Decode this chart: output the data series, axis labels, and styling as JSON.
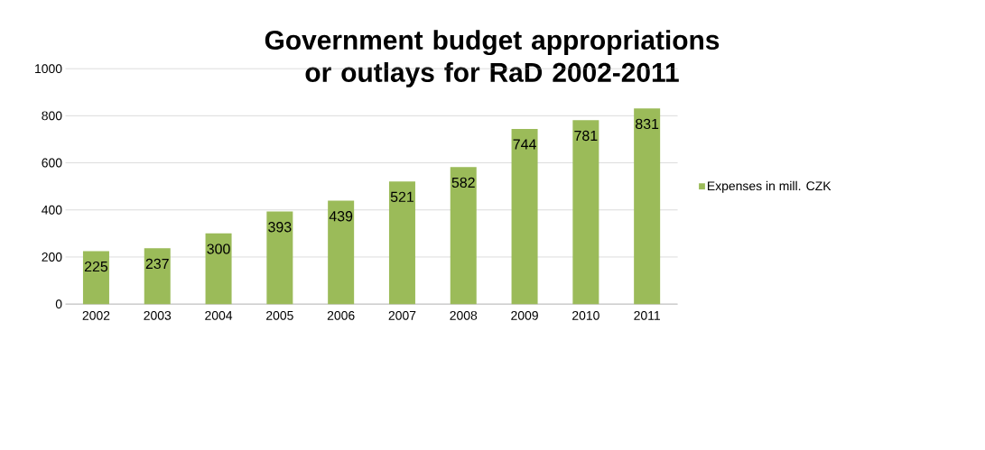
{
  "chart_data": {
    "type": "bar",
    "title": "Government budget appropriations or outlays for RaD 2002-2011",
    "categories": [
      "2002",
      "2003",
      "2004",
      "2005",
      "2006",
      "2007",
      "2008",
      "2009",
      "2010",
      "2011"
    ],
    "series": [
      {
        "name": "Expenses in mill. CZK",
        "color": "#9bbb59",
        "values": [
          225,
          237,
          300,
          393,
          439,
          521,
          582,
          744,
          781,
          831
        ]
      }
    ],
    "ylim": [
      0,
      1000
    ],
    "yticks": [
      0,
      200,
      400,
      600,
      800,
      1000
    ],
    "grid": "y",
    "legend": "right",
    "data_labels": true
  }
}
